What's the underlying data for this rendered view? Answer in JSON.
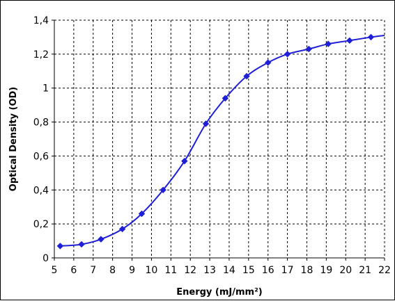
{
  "chart_data": {
    "type": "line",
    "title": "",
    "xlabel": "Energy (mJ/mm²)",
    "ylabel": "Optical Density (OD)",
    "xlim": [
      5,
      22
    ],
    "ylim": [
      0,
      1.4
    ],
    "x_ticks": [
      5,
      6,
      7,
      8,
      9,
      10,
      11,
      12,
      13,
      14,
      15,
      16,
      17,
      18,
      19,
      20,
      21,
      22
    ],
    "y_ticks": [
      0,
      0.2,
      0.4,
      0.6,
      0.8,
      1,
      1.2,
      1.4
    ],
    "y_tick_labels": [
      "0",
      "0,2",
      "0,4",
      "0,6",
      "0,8",
      "1",
      "1,2",
      "1,4"
    ],
    "grid": true,
    "legend": "none",
    "series": [
      {
        "color": "#1f1fd6",
        "marker": "diamond",
        "x": [
          5.3,
          6.4,
          7.4,
          8.5,
          9.5,
          10.6,
          11.7,
          12.8,
          13.8,
          14.9,
          16.0,
          17.0,
          18.1,
          19.1,
          20.2,
          21.3,
          22.0
        ],
        "y": [
          0.07,
          0.08,
          0.11,
          0.17,
          0.26,
          0.4,
          0.57,
          0.79,
          0.94,
          1.07,
          1.15,
          1.2,
          1.23,
          1.26,
          1.28,
          1.3,
          1.31
        ]
      }
    ]
  }
}
